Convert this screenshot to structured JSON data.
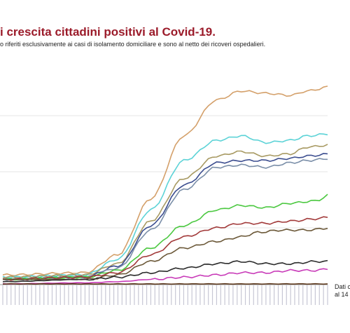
{
  "header": {
    "title": "i crescita cittadini positivi al Covid-19.",
    "subtitle": "o riferiti esclusivamente ai casi di isolamento domiciliare e sono al netto dei ricoveri ospedalieri."
  },
  "note": {
    "line1": "Dati c",
    "line2": "al 14 g"
  },
  "chart_data": {
    "type": "line",
    "title": "i crescita cittadini positivi al Covid-19.",
    "subtitle": "o riferiti esclusivamente ai casi di isolamento domiciliare e sono al netto dei ricoveri ospedalieri.",
    "xlabel": "",
    "ylabel": "",
    "x_count": 80,
    "ylim": [
      0,
      100
    ],
    "grid": "horizontal",
    "legend": "none",
    "series": [
      {
        "color": "#d4a06a",
        "anchors": [
          [
            0,
            4
          ],
          [
            20,
            5
          ],
          [
            28,
            13
          ],
          [
            36,
            38
          ],
          [
            44,
            66
          ],
          [
            52,
            82
          ],
          [
            58,
            86
          ],
          [
            64,
            85
          ],
          [
            70,
            84
          ],
          [
            74,
            86
          ],
          [
            80,
            88
          ]
        ]
      },
      {
        "color": "#5dd3d7",
        "anchors": [
          [
            0,
            3
          ],
          [
            20,
            4
          ],
          [
            28,
            11
          ],
          [
            36,
            33
          ],
          [
            44,
            55
          ],
          [
            52,
            64
          ],
          [
            58,
            66
          ],
          [
            64,
            63
          ],
          [
            70,
            64
          ],
          [
            74,
            66
          ],
          [
            80,
            67
          ]
        ]
      },
      {
        "color": "#a89a63",
        "anchors": [
          [
            0,
            3
          ],
          [
            20,
            4
          ],
          [
            28,
            9
          ],
          [
            36,
            28
          ],
          [
            44,
            47
          ],
          [
            52,
            57
          ],
          [
            58,
            59
          ],
          [
            64,
            57
          ],
          [
            70,
            58
          ],
          [
            74,
            61
          ],
          [
            80,
            62
          ]
        ]
      },
      {
        "color": "#3b4d8f",
        "anchors": [
          [
            0,
            2
          ],
          [
            20,
            3
          ],
          [
            28,
            8
          ],
          [
            36,
            26
          ],
          [
            44,
            44
          ],
          [
            52,
            54
          ],
          [
            58,
            55
          ],
          [
            64,
            55
          ],
          [
            70,
            56
          ],
          [
            74,
            57
          ],
          [
            80,
            58
          ]
        ]
      },
      {
        "color": "#7a8ea8",
        "anchors": [
          [
            0,
            2
          ],
          [
            20,
            3
          ],
          [
            28,
            7
          ],
          [
            36,
            24
          ],
          [
            44,
            42
          ],
          [
            52,
            52
          ],
          [
            58,
            53
          ],
          [
            64,
            52
          ],
          [
            70,
            54
          ],
          [
            74,
            55
          ],
          [
            80,
            56
          ]
        ]
      },
      {
        "color": "#4bc840",
        "anchors": [
          [
            0,
            2
          ],
          [
            20,
            3
          ],
          [
            28,
            6
          ],
          [
            36,
            16
          ],
          [
            44,
            26
          ],
          [
            52,
            33
          ],
          [
            58,
            35
          ],
          [
            64,
            34
          ],
          [
            70,
            36
          ],
          [
            76,
            37
          ],
          [
            80,
            40
          ]
        ]
      },
      {
        "color": "#a23a3a",
        "anchors": [
          [
            0,
            2
          ],
          [
            20,
            3
          ],
          [
            28,
            5
          ],
          [
            36,
            13
          ],
          [
            44,
            21
          ],
          [
            52,
            25
          ],
          [
            58,
            27
          ],
          [
            64,
            27
          ],
          [
            70,
            28
          ],
          [
            76,
            29
          ],
          [
            80,
            30
          ]
        ]
      },
      {
        "color": "#6b5838",
        "anchors": [
          [
            0,
            2
          ],
          [
            20,
            2
          ],
          [
            28,
            4
          ],
          [
            36,
            10
          ],
          [
            44,
            16
          ],
          [
            52,
            19
          ],
          [
            58,
            21
          ],
          [
            62,
            23
          ],
          [
            68,
            24
          ],
          [
            74,
            24
          ],
          [
            80,
            25
          ]
        ]
      },
      {
        "color": "#2b2b2b",
        "anchors": [
          [
            0,
            1
          ],
          [
            20,
            2
          ],
          [
            28,
            3
          ],
          [
            36,
            5
          ],
          [
            44,
            7
          ],
          [
            52,
            9
          ],
          [
            58,
            10
          ],
          [
            64,
            9
          ],
          [
            70,
            9
          ],
          [
            76,
            10
          ],
          [
            80,
            10
          ]
        ]
      },
      {
        "color": "#c83ab8",
        "anchors": [
          [
            0,
            0
          ],
          [
            20,
            0.5
          ],
          [
            28,
            1
          ],
          [
            36,
            2
          ],
          [
            44,
            3
          ],
          [
            52,
            4
          ],
          [
            58,
            5
          ],
          [
            64,
            5
          ],
          [
            70,
            6
          ],
          [
            76,
            6
          ],
          [
            80,
            7
          ]
        ]
      },
      {
        "color": "#5e3a1e",
        "anchors": [
          [
            0,
            0
          ],
          [
            80,
            0
          ]
        ]
      }
    ]
  }
}
